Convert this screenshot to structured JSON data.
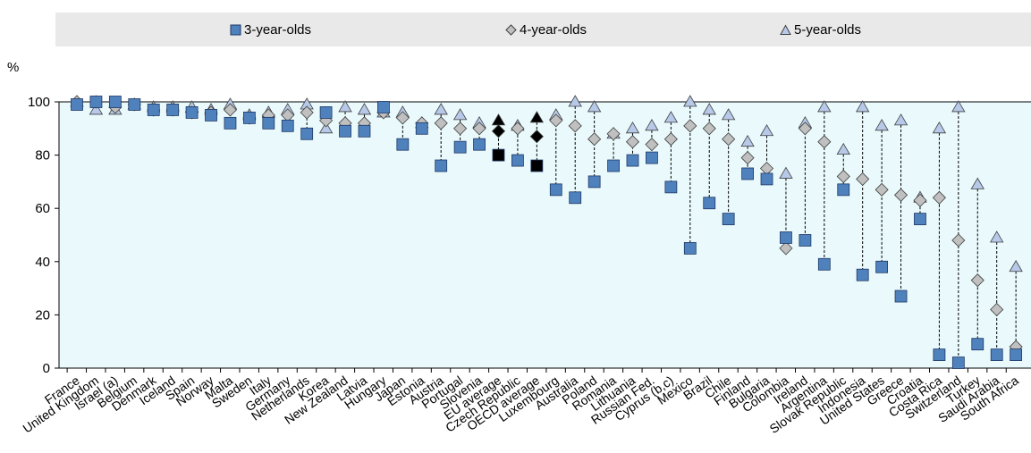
{
  "chart_data": {
    "type": "scatter",
    "title": "",
    "xlabel": "",
    "ylabel": "%",
    "ylim": [
      0,
      100
    ],
    "yticks": [
      0,
      20,
      40,
      60,
      80,
      100
    ],
    "grid": false,
    "legend_position": "top",
    "colors": {
      "three": "#4f81bd",
      "three_average": "#000000",
      "four": "#c0c0c0",
      "four_average": "#000000",
      "five": "#b7c9e8",
      "five_average": "#000000",
      "plot_background": "#eafafc",
      "legend_background": "#e9e9e9"
    },
    "categories": [
      "France",
      "United Kingdom",
      "Israel (a)",
      "Belgium",
      "Denmark",
      "Iceland",
      "Spain",
      "Norway",
      "Malta",
      "Sweden",
      "Italy",
      "Germany",
      "Netherlands",
      "Korea",
      "New Zealand",
      "Latvia",
      "Hungary",
      "Japan",
      "Estonia",
      "Austria",
      "Portugal",
      "Slovenia",
      "EU average",
      "Czech Republic",
      "OECD average",
      "Luxembourg",
      "Australia",
      "Poland",
      "Romania",
      "Lithuania",
      "Russian Fed.",
      "Cyprus (b,c)",
      "Mexico",
      "Brazil",
      "Chile",
      "Finland",
      "Bulgaria",
      "Colombia",
      "Ireland",
      "Argentina",
      "Slovak Republic",
      "Indonesia",
      "United States",
      "Greece",
      "Croatia",
      "Costa Rica",
      "Switzerland",
      "Turkey",
      "Saudi Arabia",
      "South Africa"
    ],
    "averages": [
      "EU average",
      "OECD average"
    ],
    "series": [
      {
        "name": "3-year-olds",
        "marker": "square",
        "values": [
          99,
          100,
          100,
          99,
          97,
          97,
          96,
          95,
          92,
          94,
          92,
          91,
          88,
          96,
          89,
          89,
          98,
          84,
          90,
          76,
          83,
          84,
          80,
          78,
          76,
          67,
          64,
          70,
          76,
          78,
          79,
          68,
          45,
          62,
          56,
          73,
          71,
          49,
          48,
          39,
          67,
          35,
          38,
          27,
          56,
          5,
          2,
          9,
          5,
          5
        ]
      },
      {
        "name": "4-year-olds",
        "marker": "diamond",
        "values": [
          100,
          100,
          98,
          99,
          97,
          97,
          96,
          96,
          97,
          94,
          95,
          95,
          96,
          93,
          92,
          92,
          96,
          94,
          92,
          92,
          90,
          90,
          89,
          90,
          87,
          93,
          91,
          86,
          88,
          85,
          84,
          86,
          91,
          90,
          86,
          79,
          75,
          45,
          90,
          85,
          72,
          71,
          67,
          65,
          63,
          64,
          48,
          33,
          22,
          8
        ]
      },
      {
        "name": "5-year-olds",
        "marker": "triangle",
        "values": [
          100,
          97,
          97,
          99,
          98,
          98,
          98,
          97,
          99,
          95,
          96,
          97,
          99,
          90,
          98,
          97,
          96,
          96,
          92,
          97,
          95,
          92,
          93,
          91,
          94,
          95,
          100,
          98,
          88,
          90,
          91,
          94,
          100,
          97,
          95,
          85,
          89,
          73,
          92,
          98,
          82,
          98,
          91,
          93,
          64,
          90,
          98,
          69,
          49,
          38
        ]
      }
    ]
  }
}
